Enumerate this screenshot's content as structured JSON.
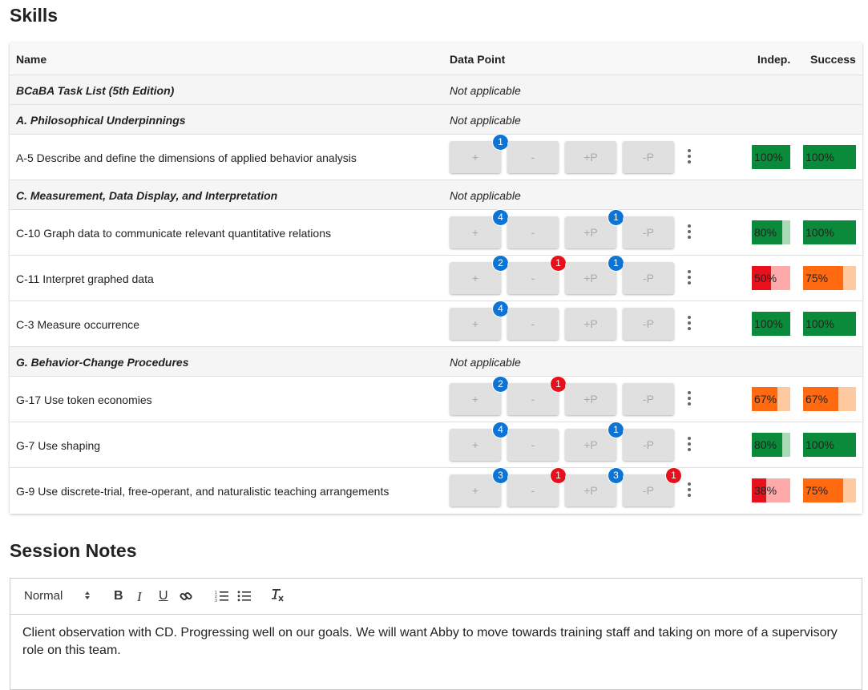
{
  "skills_title": "Skills",
  "table": {
    "col_name": "Name",
    "col_data_point": "Data Point",
    "col_indep": "Indep.",
    "col_success": "Success"
  },
  "rows": [
    {
      "type": "category",
      "name": "BCaBA Task List (5th Edition)",
      "data_point": "Not applicable"
    },
    {
      "type": "category",
      "name": "A. Philosophical Underpinnings",
      "data_point": "Not applicable"
    },
    {
      "type": "skill",
      "name": "A-5 Describe and define the dimensions of applied behavior analysis",
      "buttons": [
        "+",
        "-",
        "+P",
        "-P"
      ],
      "counts": [
        1,
        null,
        null,
        null
      ],
      "indep": {
        "label": "100%",
        "value": 100,
        "status": "green"
      },
      "success": {
        "label": "100%",
        "value": 100,
        "status": "green"
      }
    },
    {
      "type": "category",
      "name": "C. Measurement, Data Display, and Interpretation",
      "data_point": "Not applicable"
    },
    {
      "type": "skill",
      "name": "C-10 Graph data to communicate relevant quantitative relations",
      "buttons": [
        "+",
        "-",
        "+P",
        "-P"
      ],
      "counts": [
        4,
        null,
        1,
        null
      ],
      "indep": {
        "label": "80%",
        "value": 80,
        "status": "green"
      },
      "success": {
        "label": "100%",
        "value": 100,
        "status": "green"
      }
    },
    {
      "type": "skill",
      "name": "C-11 Interpret graphed data",
      "buttons": [
        "+",
        "-",
        "+P",
        "-P"
      ],
      "counts": [
        2,
        1,
        1,
        null
      ],
      "indep": {
        "label": "50%",
        "value": 50,
        "status": "red"
      },
      "success": {
        "label": "75%",
        "value": 75,
        "status": "orange"
      }
    },
    {
      "type": "skill",
      "name": "C-3 Measure occurrence",
      "buttons": [
        "+",
        "-",
        "+P",
        "-P"
      ],
      "counts": [
        4,
        null,
        null,
        null
      ],
      "indep": {
        "label": "100%",
        "value": 100,
        "status": "green"
      },
      "success": {
        "label": "100%",
        "value": 100,
        "status": "green"
      }
    },
    {
      "type": "category",
      "name": "G. Behavior-Change Procedures",
      "data_point": "Not applicable"
    },
    {
      "type": "skill",
      "name": "G-17 Use token economies",
      "buttons": [
        "+",
        "-",
        "+P",
        "-P"
      ],
      "counts": [
        2,
        1,
        null,
        null
      ],
      "indep": {
        "label": "67%",
        "value": 67,
        "status": "orange"
      },
      "success": {
        "label": "67%",
        "value": 67,
        "status": "orange"
      }
    },
    {
      "type": "skill",
      "name": "G-7 Use shaping",
      "buttons": [
        "+",
        "-",
        "+P",
        "-P"
      ],
      "counts": [
        4,
        null,
        1,
        null
      ],
      "indep": {
        "label": "80%",
        "value": 80,
        "status": "green"
      },
      "success": {
        "label": "100%",
        "value": 100,
        "status": "green"
      }
    },
    {
      "type": "skill",
      "name": "G-9 Use discrete-trial, free-operant, and naturalistic teaching arrangements",
      "buttons": [
        "+",
        "-",
        "+P",
        "-P"
      ],
      "counts": [
        3,
        1,
        3,
        1
      ],
      "indep": {
        "label": "38%",
        "value": 38,
        "status": "red"
      },
      "success": {
        "label": "75%",
        "value": 75,
        "status": "orange"
      }
    }
  ],
  "badge_colors": {
    "positive": "#0b74d6",
    "negative": "#e8101b"
  },
  "status_colors": {
    "green": {
      "fill": "#0a8a3a",
      "track": "#a8dbb5"
    },
    "orange": {
      "fill": "#ff6a10",
      "track": "#ffc9a0"
    },
    "red": {
      "fill": "#e8101b",
      "track": "#ffaaaa"
    }
  },
  "notes_title": "Session Notes",
  "editor": {
    "format_select": "Normal",
    "toolbar_icons": [
      "bold-icon",
      "italic-icon",
      "underline-icon",
      "link-icon",
      "ordered-list-icon",
      "bullet-list-icon",
      "clear-format-icon"
    ],
    "content": "Client observation with CD. Progressing well on our goals. We will want Abby to move towards training staff and taking on more of a supervisory role on this team."
  }
}
